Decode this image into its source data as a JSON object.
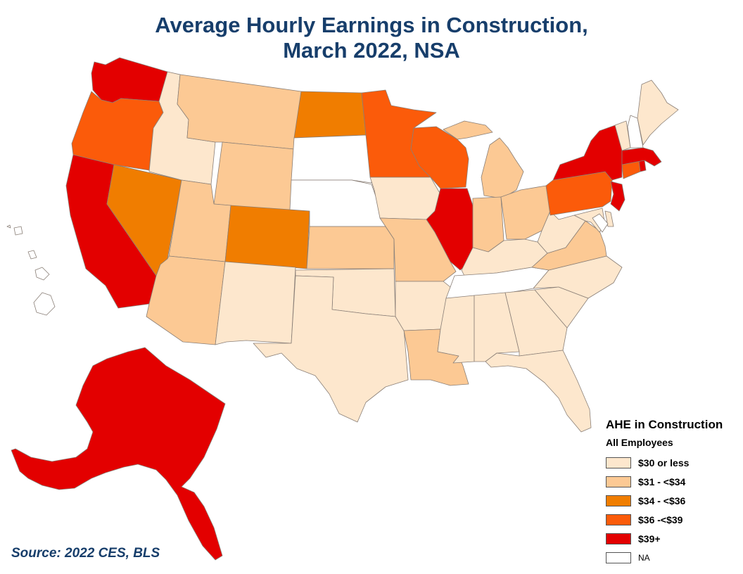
{
  "title": {
    "line1": "Average Hourly Earnings in Construction,",
    "line2": "March 2022, NSA"
  },
  "source": "Source: 2022 CES, BLS",
  "legend": {
    "title": "AHE in Construction",
    "subtitle": "All Employees",
    "items": [
      {
        "label": "$30 or less",
        "color": "#fde7cd"
      },
      {
        "label": "$31 - <$34",
        "color": "#fcc994"
      },
      {
        "label": "$34 - <$36",
        "color": "#f07d00"
      },
      {
        "label": "$36 -<$39",
        "color": "#fb5b0a"
      },
      {
        "label": "$39+",
        "color": "#e30000"
      },
      {
        "label": "NA",
        "color": "#ffffff"
      }
    ]
  },
  "states": {
    "WA": 4,
    "OR": 3,
    "CA": 4,
    "NV": 2,
    "ID": 0,
    "MT": 1,
    "WY": 1,
    "UT": 1,
    "AZ": 1,
    "CO": 2,
    "NM": 0,
    "ND": 2,
    "SD": 5,
    "NE": 5,
    "KS": 1,
    "OK": 0,
    "TX": 0,
    "MN": 3,
    "IA": 0,
    "MO": 1,
    "AR": 0,
    "LA": 1,
    "WI": 3,
    "IL": 4,
    "MI": 1,
    "IN": 1,
    "OH": 1,
    "KY": 0,
    "TN": 5,
    "MS": 0,
    "AL": 0,
    "GA": 0,
    "FL": 0,
    "SC": 0,
    "NC": 0,
    "VA": 1,
    "WV": 0,
    "PA": 3,
    "NY": 4,
    "NJ": 4,
    "DE": 0,
    "MD": 0,
    "DC": 5,
    "CT": 3,
    "RI": 4,
    "MA": 4,
    "VT": 0,
    "NH": 5,
    "ME": 0,
    "AK": 4,
    "HI": 5
  }
}
